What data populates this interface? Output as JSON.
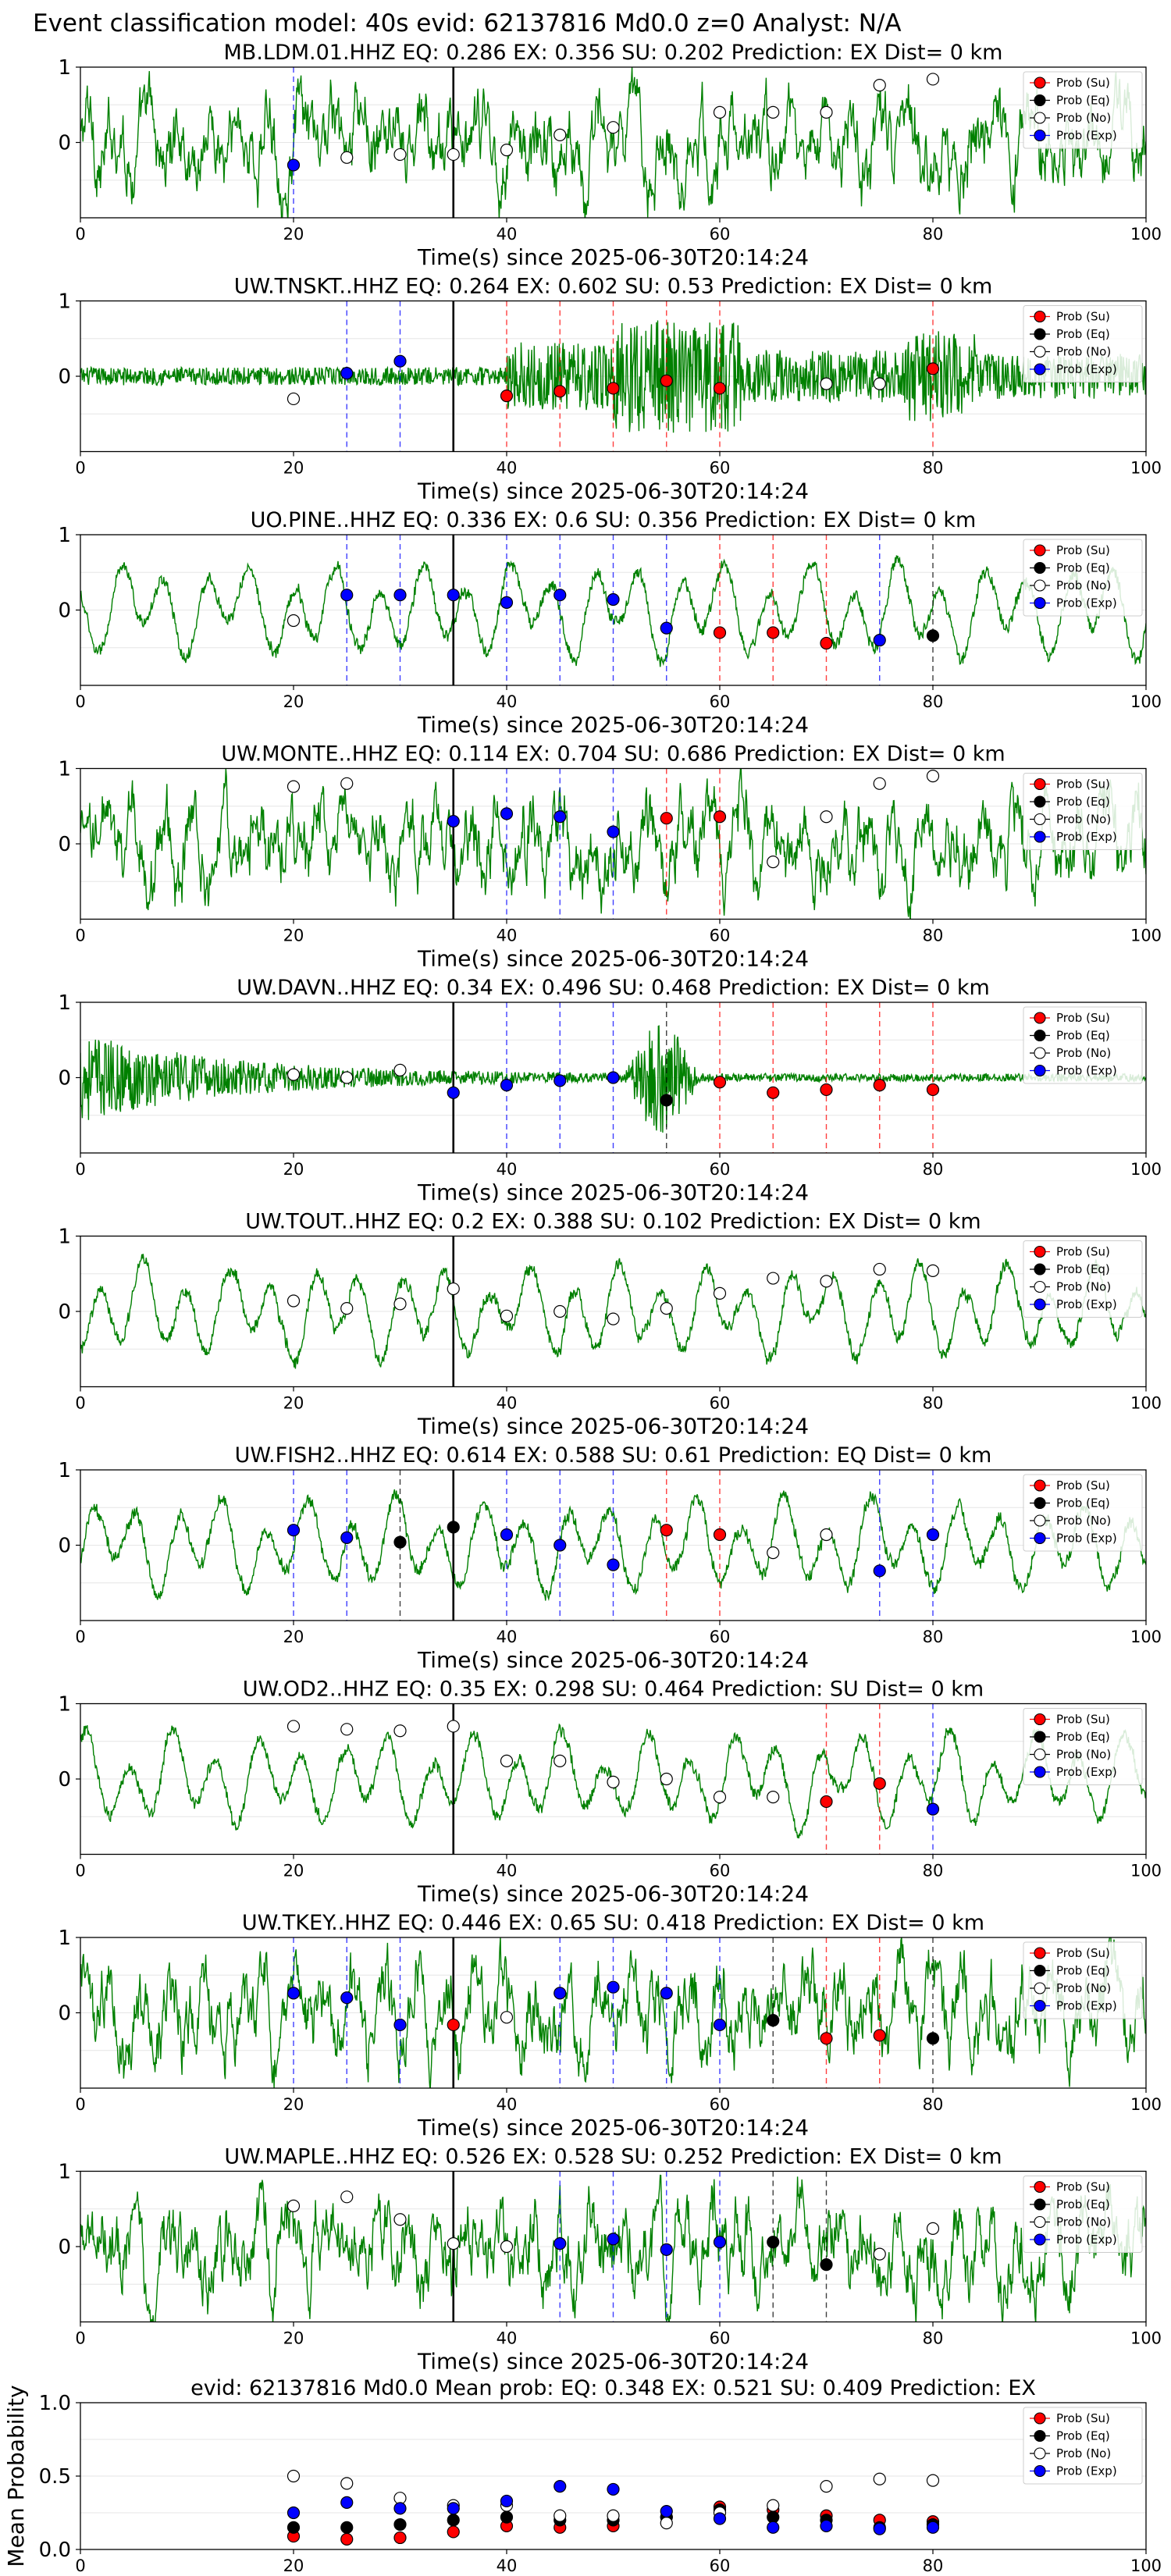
{
  "figure": {
    "suptitle": "Event classification model: 40s evid: 62137816 Md0.0 z=0 Analyst: N/A",
    "xlabel": "Time(s) since 2025-06-30T20:14:24",
    "legend": [
      "Prob (Su)",
      "Prob (Eq)",
      "Prob (No)",
      "Prob (Exp)"
    ],
    "colors": {
      "wave": "#008000",
      "su": "#ff0000",
      "eq": "#000000",
      "no": "#ffffff",
      "exp": "#0000ff",
      "onset": "#000000"
    }
  },
  "chart_data": [
    {
      "type": "line",
      "title": "MB.LDM.01.HHZ   EQ: 0.286  EX: 0.356  SU: 0.202   Prediction: EX    Dist= 0 km",
      "xlabel": "Time(s) since 2025-06-30T20:14:24",
      "xlim": [
        0,
        100
      ],
      "ylim": [
        -1,
        1
      ],
      "xticks": [
        "0",
        "20",
        "40",
        "60",
        "80",
        "100"
      ],
      "yticks": [
        "1",
        "0"
      ],
      "onset": 35,
      "waveform": "broadband",
      "points": [
        {
          "x": 20,
          "class": "exp",
          "p": 0.35
        },
        {
          "x": 25,
          "class": "no",
          "p": 0.4
        },
        {
          "x": 30,
          "class": "no",
          "p": 0.42
        },
        {
          "x": 35,
          "class": "no",
          "p": 0.42
        },
        {
          "x": 40,
          "class": "no",
          "p": 0.45
        },
        {
          "x": 45,
          "class": "no",
          "p": 0.55
        },
        {
          "x": 50,
          "class": "no",
          "p": 0.6
        },
        {
          "x": 60,
          "class": "no",
          "p": 0.7
        },
        {
          "x": 65,
          "class": "no",
          "p": 0.7
        },
        {
          "x": 70,
          "class": "no",
          "p": 0.7
        },
        {
          "x": 75,
          "class": "no",
          "p": 0.88
        },
        {
          "x": 80,
          "class": "no",
          "p": 0.92
        }
      ]
    },
    {
      "type": "line",
      "title": "UW.TNSKT..HHZ   EQ: 0.264  EX: 0.602  SU: 0.53   Prediction: EX    Dist= 0 km",
      "xlabel": "Time(s) since 2025-06-30T20:14:24",
      "xlim": [
        0,
        100
      ],
      "ylim": [
        -1,
        1
      ],
      "xticks": [
        "0",
        "20",
        "40",
        "60",
        "80",
        "100"
      ],
      "yticks": [
        "1",
        "0"
      ],
      "onset": 35,
      "waveform": "burst",
      "points": [
        {
          "x": 20,
          "class": "no",
          "p": 0.35
        },
        {
          "x": 25,
          "class": "exp",
          "p": 0.52
        },
        {
          "x": 30,
          "class": "exp",
          "p": 0.6
        },
        {
          "x": 40,
          "class": "su",
          "p": 0.37
        },
        {
          "x": 45,
          "class": "su",
          "p": 0.4
        },
        {
          "x": 50,
          "class": "su",
          "p": 0.42
        },
        {
          "x": 55,
          "class": "su",
          "p": 0.47
        },
        {
          "x": 60,
          "class": "su",
          "p": 0.42
        },
        {
          "x": 70,
          "class": "no",
          "p": 0.45
        },
        {
          "x": 75,
          "class": "no",
          "p": 0.45
        },
        {
          "x": 80,
          "class": "su",
          "p": 0.55
        }
      ]
    },
    {
      "type": "line",
      "title": "UO.PINE..HHZ   EQ: 0.336  EX: 0.6  SU: 0.356   Prediction: EX    Dist= 0 km",
      "xlabel": "Time(s) since 2025-06-30T20:14:24",
      "xlim": [
        0,
        100
      ],
      "ylim": [
        -1,
        1
      ],
      "xticks": [
        "0",
        "20",
        "40",
        "60",
        "80",
        "100"
      ],
      "yticks": [
        "1",
        "0"
      ],
      "onset": 35,
      "waveform": "lowfreq",
      "points": [
        {
          "x": 20,
          "class": "no",
          "p": 0.43
        },
        {
          "x": 25,
          "class": "exp",
          "p": 0.6
        },
        {
          "x": 30,
          "class": "exp",
          "p": 0.6
        },
        {
          "x": 35,
          "class": "exp",
          "p": 0.6
        },
        {
          "x": 40,
          "class": "exp",
          "p": 0.55
        },
        {
          "x": 45,
          "class": "exp",
          "p": 0.6
        },
        {
          "x": 50,
          "class": "exp",
          "p": 0.57
        },
        {
          "x": 55,
          "class": "exp",
          "p": 0.38
        },
        {
          "x": 60,
          "class": "su",
          "p": 0.35
        },
        {
          "x": 65,
          "class": "su",
          "p": 0.35
        },
        {
          "x": 70,
          "class": "su",
          "p": 0.28
        },
        {
          "x": 75,
          "class": "exp",
          "p": 0.3
        },
        {
          "x": 80,
          "class": "eq",
          "p": 0.33
        }
      ]
    },
    {
      "type": "line",
      "title": "UW.MONTE..HHZ   EQ: 0.114  EX: 0.704  SU: 0.686   Prediction: EX    Dist= 0 km",
      "xlabel": "Time(s) since 2025-06-30T20:14:24",
      "xlim": [
        0,
        100
      ],
      "ylim": [
        -1,
        1
      ],
      "xticks": [
        "0",
        "20",
        "40",
        "60",
        "80",
        "100"
      ],
      "yticks": [
        "1",
        "0"
      ],
      "onset": 35,
      "waveform": "broadband",
      "points": [
        {
          "x": 20,
          "class": "no",
          "p": 0.88
        },
        {
          "x": 25,
          "class": "no",
          "p": 0.9
        },
        {
          "x": 35,
          "class": "exp",
          "p": 0.65
        },
        {
          "x": 40,
          "class": "exp",
          "p": 0.7
        },
        {
          "x": 45,
          "class": "exp",
          "p": 0.68
        },
        {
          "x": 50,
          "class": "exp",
          "p": 0.58
        },
        {
          "x": 55,
          "class": "su",
          "p": 0.67
        },
        {
          "x": 60,
          "class": "su",
          "p": 0.68
        },
        {
          "x": 65,
          "class": "no",
          "p": 0.38
        },
        {
          "x": 70,
          "class": "no",
          "p": 0.68
        },
        {
          "x": 75,
          "class": "no",
          "p": 0.9
        },
        {
          "x": 80,
          "class": "no",
          "p": 0.95
        }
      ]
    },
    {
      "type": "line",
      "title": "UW.DAVN..HHZ   EQ: 0.34  EX: 0.496  SU: 0.468   Prediction: EX    Dist= 0 km",
      "xlabel": "Time(s) since 2025-06-30T20:14:24",
      "xlim": [
        0,
        100
      ],
      "ylim": [
        -1,
        1
      ],
      "xticks": [
        "0",
        "20",
        "40",
        "60",
        "80",
        "100"
      ],
      "yticks": [
        "1",
        "0"
      ],
      "onset": 35,
      "waveform": "decay",
      "points": [
        {
          "x": 20,
          "class": "no",
          "p": 0.52
        },
        {
          "x": 25,
          "class": "no",
          "p": 0.5
        },
        {
          "x": 30,
          "class": "no",
          "p": 0.55
        },
        {
          "x": 35,
          "class": "exp",
          "p": 0.4
        },
        {
          "x": 40,
          "class": "exp",
          "p": 0.45
        },
        {
          "x": 45,
          "class": "exp",
          "p": 0.48
        },
        {
          "x": 50,
          "class": "exp",
          "p": 0.5
        },
        {
          "x": 55,
          "class": "eq",
          "p": 0.35
        },
        {
          "x": 60,
          "class": "su",
          "p": 0.47
        },
        {
          "x": 65,
          "class": "su",
          "p": 0.4
        },
        {
          "x": 70,
          "class": "su",
          "p": 0.42
        },
        {
          "x": 75,
          "class": "su",
          "p": 0.45
        },
        {
          "x": 80,
          "class": "su",
          "p": 0.42
        }
      ]
    },
    {
      "type": "line",
      "title": "UW.TOUT..HHZ   EQ: 0.2  EX: 0.388  SU: 0.102   Prediction: EX    Dist= 0 km",
      "xlabel": "Time(s) since 2025-06-30T20:14:24",
      "xlim": [
        0,
        100
      ],
      "ylim": [
        -1,
        1
      ],
      "xticks": [
        "0",
        "20",
        "40",
        "60",
        "80",
        "100"
      ],
      "yticks": [
        "1",
        "0"
      ],
      "onset": 35,
      "waveform": "lowfreq",
      "points": [
        {
          "x": 20,
          "class": "no",
          "p": 0.57
        },
        {
          "x": 25,
          "class": "no",
          "p": 0.52
        },
        {
          "x": 30,
          "class": "no",
          "p": 0.55
        },
        {
          "x": 35,
          "class": "no",
          "p": 0.65
        },
        {
          "x": 40,
          "class": "no",
          "p": 0.47
        },
        {
          "x": 45,
          "class": "no",
          "p": 0.5
        },
        {
          "x": 50,
          "class": "no",
          "p": 0.45
        },
        {
          "x": 55,
          "class": "no",
          "p": 0.52
        },
        {
          "x": 60,
          "class": "no",
          "p": 0.62
        },
        {
          "x": 65,
          "class": "no",
          "p": 0.72
        },
        {
          "x": 70,
          "class": "no",
          "p": 0.7
        },
        {
          "x": 75,
          "class": "no",
          "p": 0.78
        },
        {
          "x": 80,
          "class": "no",
          "p": 0.77
        }
      ]
    },
    {
      "type": "line",
      "title": "UW.FISH2..HHZ   EQ: 0.614  EX: 0.588  SU: 0.61   Prediction: EQ    Dist= 0 km",
      "xlabel": "Time(s) since 2025-06-30T20:14:24",
      "xlim": [
        0,
        100
      ],
      "ylim": [
        -1,
        1
      ],
      "xticks": [
        "0",
        "20",
        "40",
        "60",
        "80",
        "100"
      ],
      "yticks": [
        "1",
        "0"
      ],
      "onset": 35,
      "waveform": "lowfreq",
      "points": [
        {
          "x": 20,
          "class": "exp",
          "p": 0.6
        },
        {
          "x": 25,
          "class": "exp",
          "p": 0.55
        },
        {
          "x": 30,
          "class": "eq",
          "p": 0.52
        },
        {
          "x": 35,
          "class": "eq",
          "p": 0.62
        },
        {
          "x": 40,
          "class": "exp",
          "p": 0.57
        },
        {
          "x": 45,
          "class": "exp",
          "p": 0.5
        },
        {
          "x": 50,
          "class": "exp",
          "p": 0.37
        },
        {
          "x": 55,
          "class": "su",
          "p": 0.6
        },
        {
          "x": 60,
          "class": "su",
          "p": 0.57
        },
        {
          "x": 65,
          "class": "no",
          "p": 0.45
        },
        {
          "x": 70,
          "class": "no",
          "p": 0.57
        },
        {
          "x": 75,
          "class": "exp",
          "p": 0.33
        },
        {
          "x": 80,
          "class": "exp",
          "p": 0.57
        }
      ]
    },
    {
      "type": "line",
      "title": "UW.OD2..HHZ   EQ: 0.35  EX: 0.298  SU: 0.464   Prediction: SU    Dist= 0 km",
      "xlabel": "Time(s) since 2025-06-30T20:14:24",
      "xlim": [
        0,
        100
      ],
      "ylim": [
        -1,
        1
      ],
      "xticks": [
        "0",
        "20",
        "40",
        "60",
        "80",
        "100"
      ],
      "yticks": [
        "1",
        "0"
      ],
      "onset": 35,
      "waveform": "lowfreq",
      "points": [
        {
          "x": 20,
          "class": "no",
          "p": 0.85
        },
        {
          "x": 25,
          "class": "no",
          "p": 0.83
        },
        {
          "x": 30,
          "class": "no",
          "p": 0.82
        },
        {
          "x": 35,
          "class": "no",
          "p": 0.85
        },
        {
          "x": 40,
          "class": "no",
          "p": 0.62
        },
        {
          "x": 45,
          "class": "no",
          "p": 0.62
        },
        {
          "x": 50,
          "class": "no",
          "p": 0.48
        },
        {
          "x": 55,
          "class": "no",
          "p": 0.5
        },
        {
          "x": 60,
          "class": "no",
          "p": 0.38
        },
        {
          "x": 65,
          "class": "no",
          "p": 0.38
        },
        {
          "x": 70,
          "class": "su",
          "p": 0.35
        },
        {
          "x": 75,
          "class": "su",
          "p": 0.47
        },
        {
          "x": 80,
          "class": "exp",
          "p": 0.3
        }
      ]
    },
    {
      "type": "line",
      "title": "UW.TKEY..HHZ   EQ: 0.446  EX: 0.65  SU: 0.418   Prediction: EX    Dist= 0 km",
      "xlabel": "Time(s) since 2025-06-30T20:14:24",
      "xlim": [
        0,
        100
      ],
      "ylim": [
        -1,
        1
      ],
      "xticks": [
        "0",
        "20",
        "40",
        "60",
        "80",
        "100"
      ],
      "yticks": [
        "1",
        "0"
      ],
      "onset": 35,
      "waveform": "broadband",
      "points": [
        {
          "x": 20,
          "class": "exp",
          "p": 0.63
        },
        {
          "x": 25,
          "class": "exp",
          "p": 0.6
        },
        {
          "x": 30,
          "class": "exp",
          "p": 0.42
        },
        {
          "x": 35,
          "class": "su",
          "p": 0.42
        },
        {
          "x": 40,
          "class": "no",
          "p": 0.47
        },
        {
          "x": 45,
          "class": "exp",
          "p": 0.63
        },
        {
          "x": 50,
          "class": "exp",
          "p": 0.67
        },
        {
          "x": 55,
          "class": "exp",
          "p": 0.63
        },
        {
          "x": 60,
          "class": "exp",
          "p": 0.42
        },
        {
          "x": 65,
          "class": "eq",
          "p": 0.45
        },
        {
          "x": 70,
          "class": "su",
          "p": 0.33
        },
        {
          "x": 75,
          "class": "su",
          "p": 0.35
        },
        {
          "x": 80,
          "class": "eq",
          "p": 0.33
        }
      ]
    },
    {
      "type": "line",
      "title": "UW.MAPLE..HHZ   EQ: 0.526  EX: 0.528  SU: 0.252   Prediction: EX    Dist= 0 km",
      "xlabel": "Time(s) since 2025-06-30T20:14:24",
      "xlim": [
        0,
        100
      ],
      "ylim": [
        -1,
        1
      ],
      "xticks": [
        "0",
        "20",
        "40",
        "60",
        "80",
        "100"
      ],
      "yticks": [
        "1",
        "0"
      ],
      "onset": 35,
      "waveform": "broadband",
      "points": [
        {
          "x": 20,
          "class": "no",
          "p": 0.77
        },
        {
          "x": 25,
          "class": "no",
          "p": 0.83
        },
        {
          "x": 30,
          "class": "no",
          "p": 0.68
        },
        {
          "x": 35,
          "class": "no",
          "p": 0.52
        },
        {
          "x": 40,
          "class": "no",
          "p": 0.5
        },
        {
          "x": 45,
          "class": "exp",
          "p": 0.52
        },
        {
          "x": 50,
          "class": "exp",
          "p": 0.55
        },
        {
          "x": 55,
          "class": "exp",
          "p": 0.48
        },
        {
          "x": 60,
          "class": "exp",
          "p": 0.53
        },
        {
          "x": 65,
          "class": "eq",
          "p": 0.53
        },
        {
          "x": 70,
          "class": "eq",
          "p": 0.38
        },
        {
          "x": 75,
          "class": "no",
          "p": 0.45
        },
        {
          "x": 80,
          "class": "no",
          "p": 0.62
        }
      ]
    },
    {
      "type": "scatter",
      "title": "evid: 62137816  Md0.0   Mean prob:   EQ: 0.348  EX: 0.521  SU: 0.409   Prediction: EX",
      "ylabel": "Mean Probability",
      "xlim": [
        0,
        100
      ],
      "ylim": [
        0,
        1
      ],
      "xticks": [
        "0",
        "20",
        "40",
        "60",
        "80",
        "100"
      ],
      "yticks": [
        "0.0",
        "0.5",
        "1.0"
      ],
      "x": [
        20,
        25,
        30,
        35,
        40,
        45,
        50,
        55,
        60,
        65,
        70,
        75,
        80
      ],
      "series": [
        {
          "class": "su",
          "values": [
            0.09,
            0.07,
            0.08,
            0.12,
            0.16,
            0.15,
            0.16,
            0.22,
            0.29,
            0.27,
            0.23,
            0.2,
            0.19
          ]
        },
        {
          "class": "eq",
          "values": [
            0.15,
            0.15,
            0.17,
            0.2,
            0.22,
            0.2,
            0.2,
            0.22,
            0.27,
            0.22,
            0.2,
            0.15,
            0.17
          ]
        },
        {
          "class": "no",
          "values": [
            0.5,
            0.45,
            0.35,
            0.3,
            0.3,
            0.23,
            0.23,
            0.18,
            0.25,
            0.3,
            0.43,
            0.48,
            0.47
          ]
        },
        {
          "class": "exp",
          "values": [
            0.25,
            0.32,
            0.28,
            0.28,
            0.33,
            0.43,
            0.41,
            0.26,
            0.21,
            0.15,
            0.16,
            0.14,
            0.15
          ]
        }
      ]
    }
  ]
}
